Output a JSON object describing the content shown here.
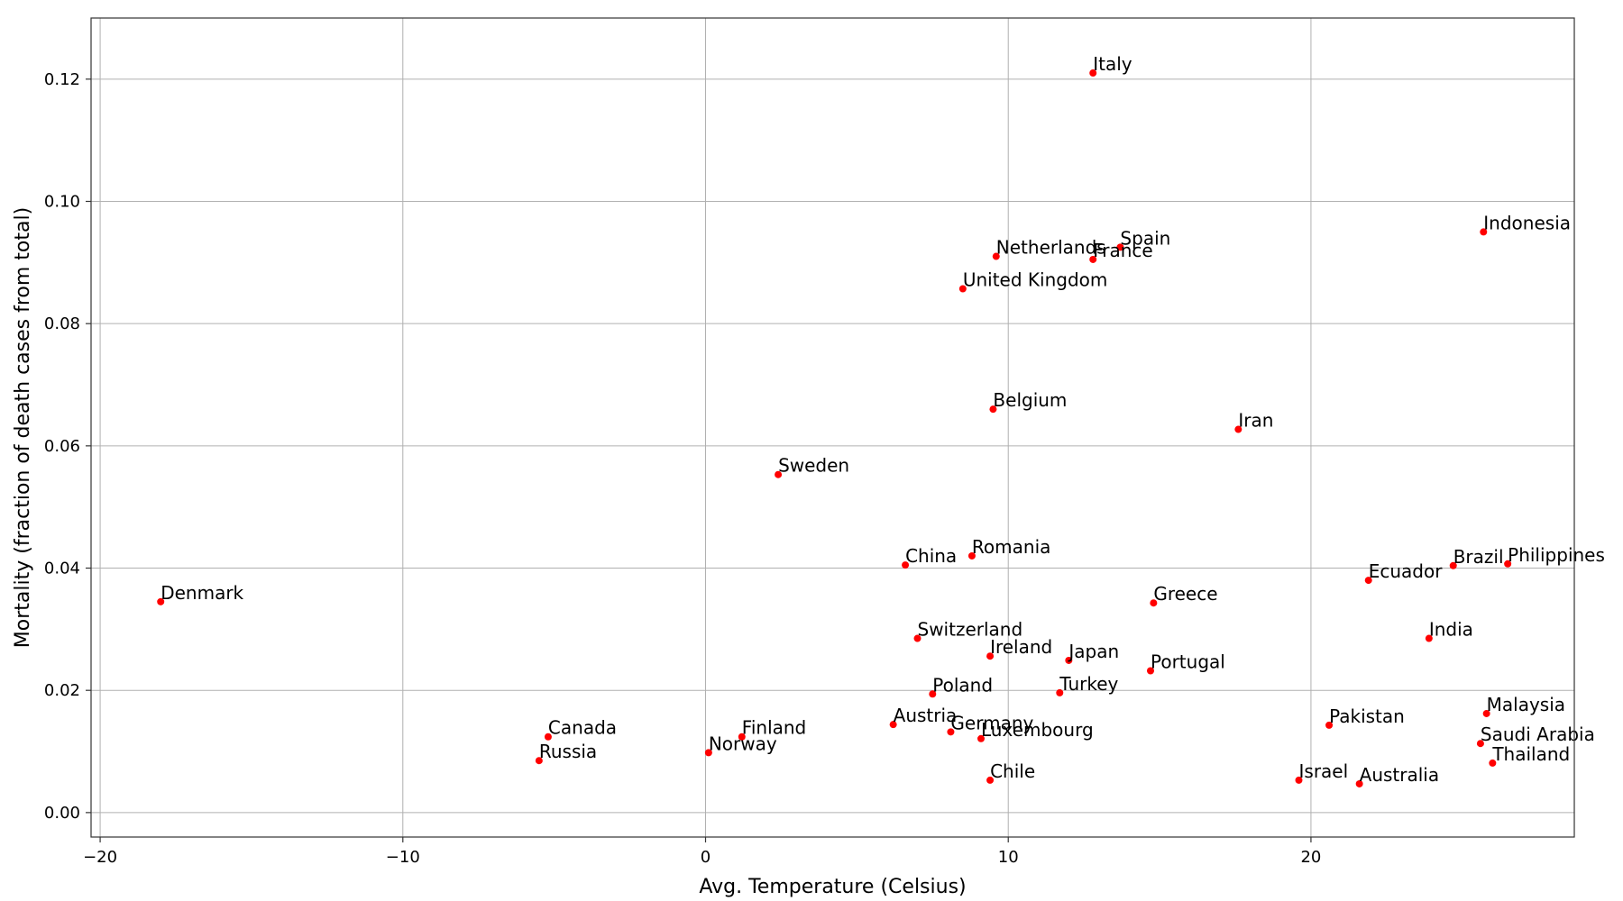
{
  "chart_data": {
    "type": "scatter",
    "xlabel": "Avg. Temperature (Celsius)",
    "ylabel": "Mortality (fraction of death cases from total)",
    "xlim": [
      -20.3,
      28.7
    ],
    "ylim": [
      -0.004,
      0.13
    ],
    "xticks": [
      -20,
      -10,
      0,
      10,
      20
    ],
    "xtick_labels": [
      "−20",
      "−10",
      "0",
      "10",
      "20"
    ],
    "yticks": [
      0.0,
      0.02,
      0.04,
      0.06,
      0.08,
      0.1,
      0.12
    ],
    "ytick_labels": [
      "0.00",
      "0.02",
      "0.04",
      "0.06",
      "0.08",
      "0.10",
      "0.12"
    ],
    "grid": true,
    "marker_color": "#ff0000",
    "points": [
      {
        "label": "Italy",
        "x": 12.8,
        "y": 0.121
      },
      {
        "label": "Indonesia",
        "x": 25.7,
        "y": 0.095
      },
      {
        "label": "Spain",
        "x": 13.7,
        "y": 0.0925
      },
      {
        "label": "Netherlands",
        "x": 9.6,
        "y": 0.091
      },
      {
        "label": "France",
        "x": 12.8,
        "y": 0.0905
      },
      {
        "label": "United Kingdom",
        "x": 8.5,
        "y": 0.0857
      },
      {
        "label": "Belgium",
        "x": 9.5,
        "y": 0.066
      },
      {
        "label": "Iran",
        "x": 17.6,
        "y": 0.0627
      },
      {
        "label": "Sweden",
        "x": 2.4,
        "y": 0.0553
      },
      {
        "label": "Romania",
        "x": 8.8,
        "y": 0.042
      },
      {
        "label": "China",
        "x": 6.6,
        "y": 0.0405
      },
      {
        "label": "Brazil",
        "x": 24.7,
        "y": 0.0404
      },
      {
        "label": "Philippines",
        "x": 26.5,
        "y": 0.0407
      },
      {
        "label": "Ecuador",
        "x": 21.9,
        "y": 0.038
      },
      {
        "label": "Denmark",
        "x": -18.0,
        "y": 0.0345
      },
      {
        "label": "Greece",
        "x": 14.8,
        "y": 0.0343
      },
      {
        "label": "Switzerland",
        "x": 7.0,
        "y": 0.0285
      },
      {
        "label": "India",
        "x": 23.9,
        "y": 0.0285
      },
      {
        "label": "Ireland",
        "x": 9.4,
        "y": 0.0256
      },
      {
        "label": "Japan",
        "x": 12.0,
        "y": 0.0249
      },
      {
        "label": "Portugal",
        "x": 14.7,
        "y": 0.0232
      },
      {
        "label": "Poland",
        "x": 7.5,
        "y": 0.0194
      },
      {
        "label": "Turkey",
        "x": 11.7,
        "y": 0.0196
      },
      {
        "label": "Malaysia",
        "x": 25.8,
        "y": 0.0162
      },
      {
        "label": "Pakistan",
        "x": 20.6,
        "y": 0.0143
      },
      {
        "label": "Austria",
        "x": 6.2,
        "y": 0.0144
      },
      {
        "label": "Germany",
        "x": 8.1,
        "y": 0.0132
      },
      {
        "label": "Luxembourg",
        "x": 9.1,
        "y": 0.0121
      },
      {
        "label": "Canada",
        "x": -5.2,
        "y": 0.0124
      },
      {
        "label": "Finland",
        "x": 1.2,
        "y": 0.0124
      },
      {
        "label": "Saudi Arabia",
        "x": 25.6,
        "y": 0.0113
      },
      {
        "label": "Norway",
        "x": 0.1,
        "y": 0.0098
      },
      {
        "label": "Russia",
        "x": -5.5,
        "y": 0.0085
      },
      {
        "label": "Thailand",
        "x": 26.0,
        "y": 0.0081
      },
      {
        "label": "Chile",
        "x": 9.4,
        "y": 0.0053
      },
      {
        "label": "Israel",
        "x": 19.6,
        "y": 0.0053
      },
      {
        "label": "Australia",
        "x": 21.6,
        "y": 0.0047
      }
    ]
  }
}
